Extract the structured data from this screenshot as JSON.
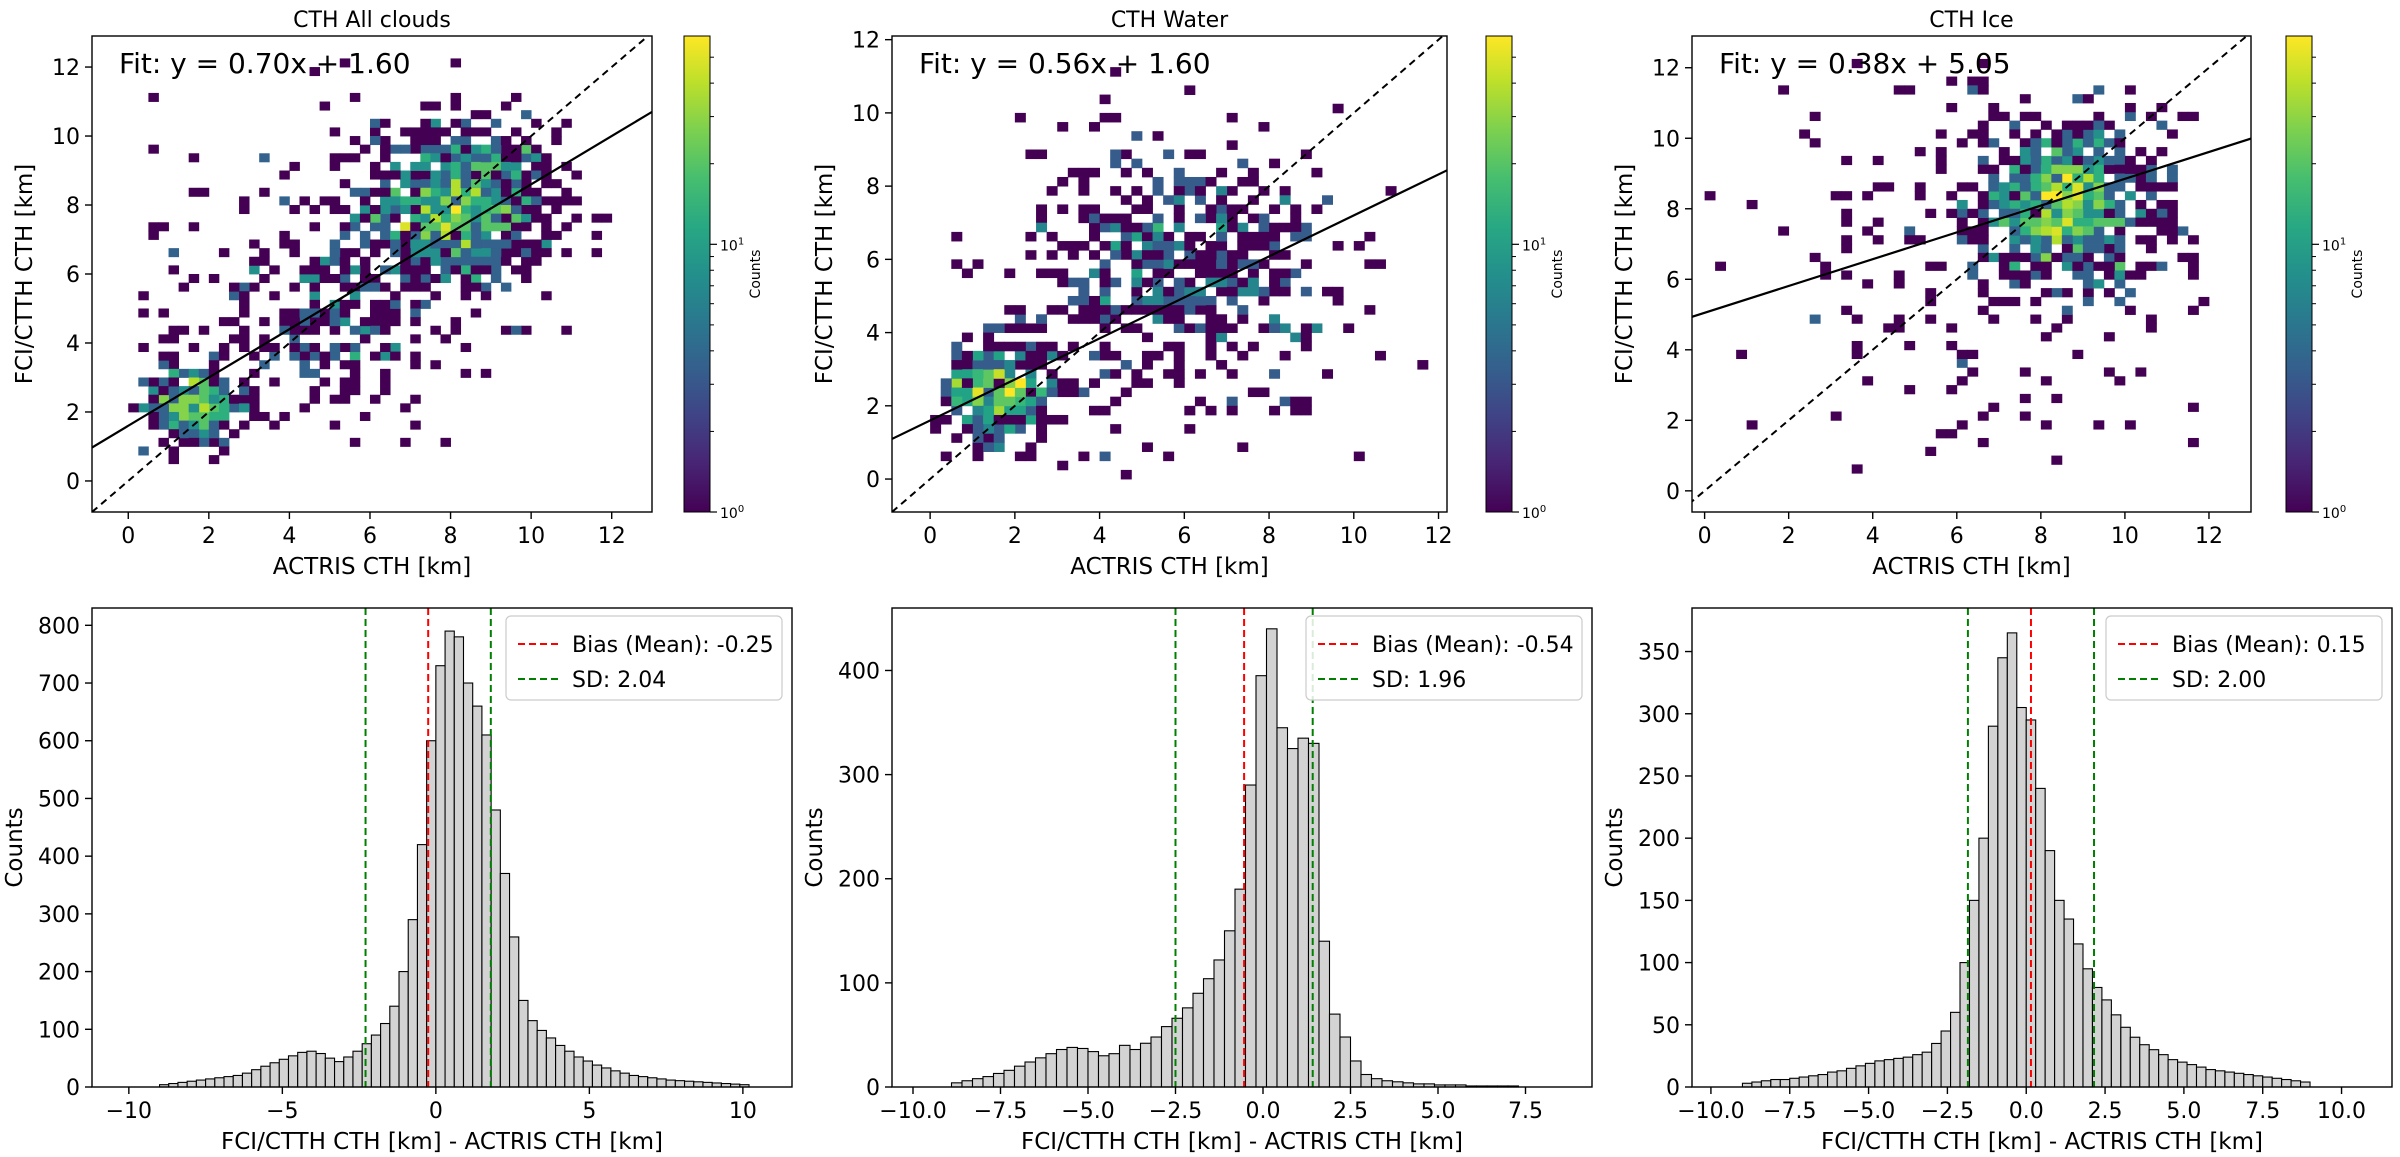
{
  "chart_data": [
    {
      "type": "heatmap",
      "title": "CTH All clouds",
      "xlabel": "ACTRIS CTH [km]",
      "ylabel": "FCI/CTTH CTH [km]",
      "xlim": [
        -0.9,
        13.0
      ],
      "ylim": [
        -0.9,
        12.9
      ],
      "xticks": [
        0,
        2,
        4,
        6,
        8,
        10,
        12
      ],
      "yticks": [
        0,
        2,
        4,
        6,
        8,
        10,
        12
      ],
      "fit_text": "Fit: y = 0.70x + 1.60",
      "fit": {
        "slope": 0.7,
        "intercept": 1.6
      },
      "one_to_one_line": true,
      "colorbar": {
        "label": "Counts",
        "scale": "log",
        "ticks": [
          "10^0",
          "10^1"
        ],
        "range": [
          1,
          60
        ]
      },
      "clusters": [
        {
          "x": 8.2,
          "y": 7.9,
          "sx": 1.2,
          "sy": 1.2,
          "n": 700,
          "peak_count": 60
        },
        {
          "x": 1.6,
          "y": 2.2,
          "sx": 0.7,
          "sy": 0.6,
          "n": 230,
          "peak_count": 40
        },
        {
          "x": 4.8,
          "y": 4.5,
          "sx": 1.4,
          "sy": 1.2,
          "n": 180,
          "peak_count": 20
        },
        {
          "x": 6.0,
          "y": 7.5,
          "sx": 3.0,
          "sy": 2.8,
          "n": 160,
          "peak_count": 5
        }
      ]
    },
    {
      "type": "heatmap",
      "title": "CTH Water",
      "xlabel": "ACTRIS CTH [km]",
      "ylabel": "FCI/CTTH CTH [km]",
      "xlim": [
        -0.9,
        12.2
      ],
      "ylim": [
        -0.9,
        12.1
      ],
      "xticks": [
        0,
        2,
        4,
        6,
        8,
        10,
        12
      ],
      "yticks": [
        0,
        2,
        4,
        6,
        8,
        10,
        12
      ],
      "fit_text": "Fit: y = 0.56x + 1.60",
      "fit": {
        "slope": 0.56,
        "intercept": 1.6
      },
      "one_to_one_line": true,
      "colorbar": {
        "label": "Counts",
        "scale": "log",
        "ticks": [
          "10^0",
          "10^1"
        ],
        "range": [
          1,
          60
        ]
      },
      "clusters": [
        {
          "x": 1.6,
          "y": 2.4,
          "sx": 0.7,
          "sy": 0.7,
          "n": 320,
          "peak_count": 45
        },
        {
          "x": 6.0,
          "y": 6.0,
          "sx": 1.7,
          "sy": 1.6,
          "n": 380,
          "peak_count": 20
        },
        {
          "x": 5.5,
          "y": 5.0,
          "sx": 2.6,
          "sy": 2.6,
          "n": 170,
          "peak_count": 5
        }
      ]
    },
    {
      "type": "heatmap",
      "title": "CTH Ice",
      "xlabel": "ACTRIS CTH [km]",
      "ylabel": "FCI/CTTH CTH [km]",
      "xlim": [
        -0.3,
        13.0
      ],
      "ylim": [
        -0.6,
        12.9
      ],
      "xticks": [
        0,
        2,
        4,
        6,
        8,
        10,
        12
      ],
      "yticks": [
        0,
        2,
        4,
        6,
        8,
        10,
        12
      ],
      "fit_text": "Fit: y = 0.38x + 5.05",
      "fit": {
        "slope": 0.38,
        "intercept": 5.05
      },
      "one_to_one_line": true,
      "colorbar": {
        "label": "Counts",
        "scale": "log",
        "ticks": [
          "10^0",
          "10^1"
        ],
        "range": [
          1,
          60
        ]
      },
      "clusters": [
        {
          "x": 8.6,
          "y": 8.2,
          "sx": 1.1,
          "sy": 1.1,
          "n": 650,
          "peak_count": 60
        },
        {
          "x": 7.0,
          "y": 6.5,
          "sx": 3.0,
          "sy": 2.6,
          "n": 230,
          "peak_count": 5
        }
      ]
    },
    {
      "type": "bar",
      "subtype": "histogram",
      "xlabel": "FCI/CTTH CTH [km] - ACTRIS CTH [km]",
      "ylabel": "Counts",
      "xlim": [
        -11.2,
        11.6
      ],
      "ylim": [
        0,
        830
      ],
      "xticks": [
        -10,
        -5,
        0,
        5,
        10
      ],
      "xtick_labels": [
        "−10",
        "−5",
        "0",
        "5",
        "10"
      ],
      "yticks": [
        0,
        100,
        200,
        300,
        400,
        500,
        600,
        700,
        800
      ],
      "bin_start": -9.0,
      "bin_width": 0.3,
      "counts": [
        4,
        6,
        8,
        10,
        12,
        14,
        16,
        18,
        20,
        24,
        30,
        36,
        42,
        48,
        54,
        60,
        62,
        58,
        50,
        44,
        52,
        62,
        75,
        90,
        110,
        140,
        200,
        290,
        420,
        600,
        730,
        790,
        780,
        700,
        660,
        610,
        480,
        370,
        260,
        150,
        115,
        98,
        85,
        72,
        62,
        52,
        45,
        38,
        33,
        28,
        24,
        20,
        18,
        16,
        14,
        12,
        11,
        10,
        9,
        8,
        7,
        6,
        5,
        4
      ],
      "mean_line": {
        "value": -0.25,
        "label": "Bias (Mean): -0.25",
        "color": "#ff0000"
      },
      "sd_lines": {
        "values": [
          -2.29,
          1.79
        ],
        "label": "SD: 2.04",
        "color": "#008000"
      },
      "legend": "upper right"
    },
    {
      "type": "bar",
      "subtype": "histogram",
      "xlabel": "FCI/CTTH CTH [km] - ACTRIS CTH [km]",
      "ylabel": "Counts",
      "xlim": [
        -10.6,
        9.4
      ],
      "ylim": [
        0,
        460
      ],
      "xticks": [
        -10.0,
        -7.5,
        -5.0,
        -2.5,
        0.0,
        2.5,
        5.0,
        7.5
      ],
      "xtick_labels": [
        "−10.0",
        "−7.5",
        "−5.0",
        "−2.5",
        "0.0",
        "2.5",
        "5.0",
        "7.5"
      ],
      "yticks": [
        0,
        100,
        200,
        300,
        400
      ],
      "bin_start": -8.9,
      "bin_width": 0.3,
      "counts": [
        4,
        6,
        8,
        10,
        13,
        16,
        20,
        24,
        28,
        32,
        36,
        38,
        37,
        34,
        30,
        32,
        40,
        36,
        42,
        48,
        58,
        66,
        76,
        90,
        104,
        122,
        150,
        190,
        290,
        395,
        440,
        345,
        325,
        335,
        330,
        140,
        70,
        48,
        25,
        12,
        8,
        6,
        5,
        4,
        3,
        3,
        2,
        2,
        2,
        1,
        1,
        1,
        1,
        1
      ],
      "mean_line": {
        "value": -0.54,
        "label": "Bias (Mean): -0.54",
        "color": "#ff0000"
      },
      "sd_lines": {
        "values": [
          -2.5,
          1.42
        ],
        "label": "SD: 1.96",
        "color": "#008000"
      },
      "legend": "upper right"
    },
    {
      "type": "bar",
      "subtype": "histogram",
      "xlabel": "FCI/CTTH CTH [km] - ACTRIS CTH [km]",
      "ylabel": "Counts",
      "xlim": [
        -10.6,
        11.6
      ],
      "ylim": [
        0,
        385
      ],
      "xticks": [
        -10.0,
        -7.5,
        -5.0,
        -2.5,
        0.0,
        2.5,
        5.0,
        7.5,
        10.0
      ],
      "xtick_labels": [
        "−10.0",
        "−7.5",
        "−5.0",
        "−2.5",
        "0.0",
        "2.5",
        "5.0",
        "7.5",
        "10.0"
      ],
      "yticks": [
        0,
        50,
        100,
        150,
        200,
        250,
        300,
        350
      ],
      "bin_start": -9.0,
      "bin_width": 0.3,
      "counts": [
        3,
        4,
        5,
        6,
        6,
        7,
        8,
        9,
        10,
        12,
        13,
        15,
        17,
        19,
        21,
        22,
        23,
        24,
        26,
        28,
        35,
        45,
        60,
        100,
        150,
        200,
        290,
        345,
        365,
        305,
        295,
        240,
        190,
        150,
        135,
        115,
        95,
        80,
        70,
        58,
        48,
        40,
        34,
        30,
        26,
        22,
        20,
        18,
        16,
        14,
        13,
        12,
        11,
        10,
        9,
        8,
        7,
        6,
        5,
        4
      ],
      "mean_line": {
        "value": 0.15,
        "label": "Bias (Mean): 0.15",
        "color": "#ff0000"
      },
      "sd_lines": {
        "values": [
          -1.85,
          2.15
        ],
        "label": "SD: 2.00",
        "color": "#008000"
      },
      "legend": "upper right"
    }
  ]
}
